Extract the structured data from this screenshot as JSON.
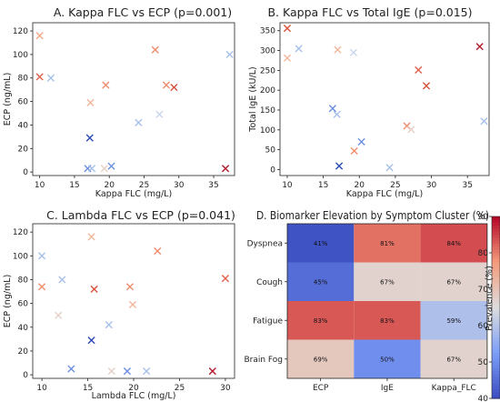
{
  "chart_data": [
    {
      "type": "scatter",
      "title": "A. Kappa FLC vs ECP (p=0.001)",
      "xlabel": "Kappa FLC (mg/L)",
      "ylabel": "ECP (ng/mL)",
      "xlim": [
        9,
        38
      ],
      "ylim": [
        -3,
        127
      ],
      "xticks": [
        "10",
        "15",
        "20",
        "25",
        "30",
        "35"
      ],
      "yticks": [
        "0",
        "20",
        "40",
        "60",
        "80",
        "100",
        "120"
      ],
      "points": [
        {
          "x": 10.0,
          "y": 116,
          "color": "#f4a582"
        },
        {
          "x": 10.0,
          "y": 81,
          "color": "#e0604a"
        },
        {
          "x": 11.6,
          "y": 80,
          "color": "#a6c0ea"
        },
        {
          "x": 16.9,
          "y": 3,
          "color": "#6a8ee0"
        },
        {
          "x": 17.2,
          "y": 29,
          "color": "#2a49b8"
        },
        {
          "x": 17.3,
          "y": 59,
          "color": "#f4b69a"
        },
        {
          "x": 17.5,
          "y": 3,
          "color": "#a6c0ea"
        },
        {
          "x": 19.3,
          "y": 3,
          "color": "#e6d0c6"
        },
        {
          "x": 19.5,
          "y": 74,
          "color": "#ef8c6c"
        },
        {
          "x": 20.3,
          "y": 5,
          "color": "#6a8ee0"
        },
        {
          "x": 24.2,
          "y": 42,
          "color": "#a6c0ea"
        },
        {
          "x": 26.6,
          "y": 104,
          "color": "#ef8c6c"
        },
        {
          "x": 27.2,
          "y": 49,
          "color": "#c8d6ec"
        },
        {
          "x": 28.2,
          "y": 74,
          "color": "#ef8c6c"
        },
        {
          "x": 29.3,
          "y": 72,
          "color": "#d9503c"
        },
        {
          "x": 36.7,
          "y": 3,
          "color": "#b2182b"
        },
        {
          "x": 37.3,
          "y": 100,
          "color": "#a6c0ea"
        }
      ]
    },
    {
      "type": "scatter",
      "title": "B. Kappa FLC vs Total IgE (p=0.015)",
      "xlabel": "Kappa FLC (mg/L)",
      "ylabel": "Total IgE (kU/L)",
      "xlim": [
        9,
        38
      ],
      "ylim": [
        -15,
        370
      ],
      "xticks": [
        "10",
        "15",
        "20",
        "25",
        "30",
        "35"
      ],
      "yticks": [
        "0",
        "50",
        "100",
        "150",
        "200",
        "250",
        "300",
        "350"
      ],
      "points": [
        {
          "x": 10.0,
          "y": 356,
          "color": "#d9503c"
        },
        {
          "x": 10.0,
          "y": 281,
          "color": "#f4b69a"
        },
        {
          "x": 11.6,
          "y": 305,
          "color": "#a6c0ea"
        },
        {
          "x": 16.3,
          "y": 154,
          "color": "#6a8ee0"
        },
        {
          "x": 16.9,
          "y": 139,
          "color": "#a6c0ea"
        },
        {
          "x": 17.0,
          "y": 302,
          "color": "#f4b69a"
        },
        {
          "x": 17.2,
          "y": 9,
          "color": "#2a49b8"
        },
        {
          "x": 19.2,
          "y": 295,
          "color": "#c8d6ec"
        },
        {
          "x": 19.3,
          "y": 47,
          "color": "#ef8c6c"
        },
        {
          "x": 20.3,
          "y": 70,
          "color": "#6a8ee0"
        },
        {
          "x": 24.2,
          "y": 5,
          "color": "#a6c0ea"
        },
        {
          "x": 26.6,
          "y": 110,
          "color": "#ef8c6c"
        },
        {
          "x": 27.2,
          "y": 101,
          "color": "#e6d0c6"
        },
        {
          "x": 28.2,
          "y": 251,
          "color": "#e0604a"
        },
        {
          "x": 29.3,
          "y": 211,
          "color": "#d9503c"
        },
        {
          "x": 36.7,
          "y": 310,
          "color": "#b2182b"
        },
        {
          "x": 37.3,
          "y": 122,
          "color": "#a6c0ea"
        }
      ]
    },
    {
      "type": "scatter",
      "title": "C. Lambda FLC vs ECP (p=0.041)",
      "xlabel": "Lambda FLC (mg/L)",
      "ylabel": "ECP (ng/mL)",
      "xlim": [
        9,
        31
      ],
      "ylim": [
        -3,
        127
      ],
      "xticks": [
        "10",
        "15",
        "20",
        "25",
        "30"
      ],
      "yticks": [
        "0",
        "20",
        "40",
        "60",
        "80",
        "100",
        "120"
      ],
      "points": [
        {
          "x": 10.0,
          "y": 100,
          "color": "#a6c0ea"
        },
        {
          "x": 10.0,
          "y": 74,
          "color": "#ef8c6c"
        },
        {
          "x": 11.8,
          "y": 50,
          "color": "#e6d0c6"
        },
        {
          "x": 12.2,
          "y": 80,
          "color": "#a6c0ea"
        },
        {
          "x": 13.2,
          "y": 5,
          "color": "#6a8ee0"
        },
        {
          "x": 15.4,
          "y": 116,
          "color": "#f4b69a"
        },
        {
          "x": 15.4,
          "y": 29,
          "color": "#2a49b8"
        },
        {
          "x": 15.7,
          "y": 72,
          "color": "#d9503c"
        },
        {
          "x": 17.3,
          "y": 42,
          "color": "#a6c0ea"
        },
        {
          "x": 17.6,
          "y": 3,
          "color": "#e6d0c6"
        },
        {
          "x": 19.3,
          "y": 3,
          "color": "#6a8ee0"
        },
        {
          "x": 19.6,
          "y": 74,
          "color": "#ef8c6c"
        },
        {
          "x": 19.9,
          "y": 59,
          "color": "#f4b69a"
        },
        {
          "x": 21.4,
          "y": 3,
          "color": "#a6c0ea"
        },
        {
          "x": 22.6,
          "y": 104,
          "color": "#ef8c6c"
        },
        {
          "x": 28.6,
          "y": 3,
          "color": "#b2182b"
        },
        {
          "x": 30.0,
          "y": 81,
          "color": "#e0604a"
        }
      ]
    },
    {
      "type": "heatmap",
      "title": "D. Biomarker Elevation by Symptom Cluster (%)",
      "rows": [
        "Dyspnea",
        "Cough",
        "Fatigue",
        "Brain Fog"
      ],
      "columns": [
        "ECP",
        "IgE",
        "Kappa_FLC"
      ],
      "values": [
        [
          41,
          81,
          84
        ],
        [
          45,
          67,
          67
        ],
        [
          83,
          83,
          59
        ],
        [
          69,
          50,
          67
        ]
      ],
      "labels": [
        [
          "41%",
          "81%",
          "84%"
        ],
        [
          "45%",
          "67%",
          "67%"
        ],
        [
          "83%",
          "83%",
          "59%"
        ],
        [
          "69%",
          "50%",
          "67%"
        ]
      ],
      "colorbar": {
        "label": "Prevalence (%)",
        "range": [
          40,
          90
        ],
        "ticks": [
          "40",
          "50",
          "60",
          "70",
          "80",
          "90"
        ],
        "colormap": "coolwarm"
      }
    }
  ]
}
